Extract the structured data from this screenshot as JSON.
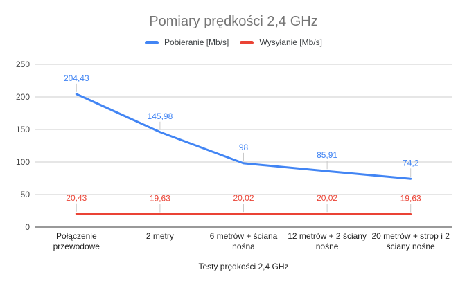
{
  "chart_data": {
    "type": "line",
    "title": "Pomiary prędkości 2,4 GHz",
    "xlabel": "Testy prędkości 2,4 GHz",
    "ylabel": "",
    "ylim": [
      0,
      250
    ],
    "yticks": [
      0,
      50,
      100,
      150,
      200,
      250
    ],
    "grid": true,
    "legend_position": "top",
    "categories": [
      "Połączenie\nprzewodowe",
      "2 metry",
      "6 metrów + ściana\nnośna",
      "12 metrów + 2 ściany\nnośne",
      "20 metrów + strop i 2\nściany nośne"
    ],
    "series": [
      {
        "name": "Pobieranie [Mb/s]",
        "color": "#4285F4",
        "values": [
          204.43,
          145.98,
          98,
          85.91,
          74.2
        ],
        "labels": [
          "204,43",
          "145,98",
          "98",
          "85,91",
          "74,2"
        ]
      },
      {
        "name": "Wysyłanie [Mb/s]",
        "color": "#EA4335",
        "values": [
          20.43,
          19.63,
          20.02,
          20.02,
          19.63
        ],
        "labels": [
          "20,43",
          "19,63",
          "20,02",
          "20,02",
          "19,63"
        ]
      }
    ],
    "colors": {
      "background": "#ffffff",
      "title_text": "#757575",
      "legend_text": "#3c4043",
      "y_tick_text": "#444444",
      "x_tick_text": "#222222",
      "gridline": "#cccccc",
      "baseline": "#333333",
      "leader_line": "#c9c9c9"
    }
  }
}
